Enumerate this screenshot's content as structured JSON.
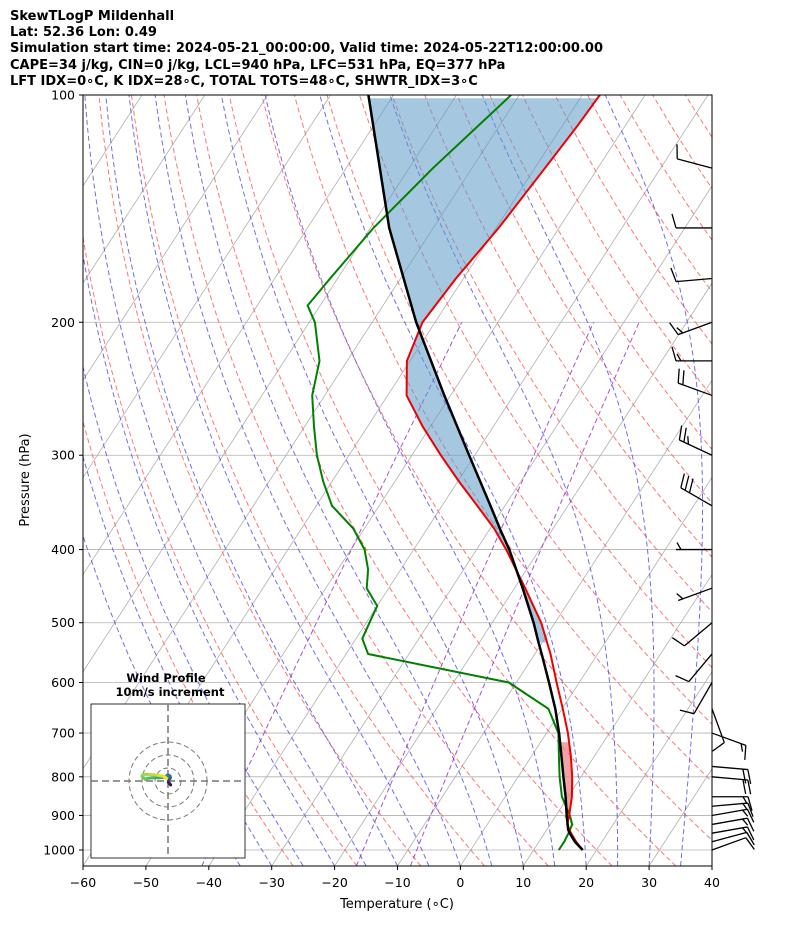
{
  "header": {
    "line1": "SkewTLogP Mildenhall",
    "line2": "Lat: 52.36   Lon: 0.49",
    "line3": "Simulation start time: 2024-05-21_00:00:00, Valid time: 2024-05-22T12:00:00.00",
    "line4": "CAPE=34 j/kg, CIN=0 j/kg, LCL=940 hPa, LFC=531 hPa, EQ=377 hPa",
    "line5": "LFT IDX=0∘C, K IDX=28∘C, TOTAL TOTS=48∘C, SHWTR_IDX=3∘C"
  },
  "chart_data": {
    "type": "skewt-logp",
    "xlabel": "Temperature (∘C)",
    "ylabel": "Pressure (hPa)",
    "xlim": [
      -60,
      40
    ],
    "ylim": [
      1050,
      100
    ],
    "y_scale": "log",
    "x_ticks": [
      "−60",
      "−50",
      "−40",
      "−30",
      "−20",
      "−10",
      "0",
      "10",
      "20",
      "30",
      "40"
    ],
    "y_ticks": [
      "100",
      "200",
      "300",
      "400",
      "500",
      "600",
      "700",
      "800",
      "900",
      "1000"
    ],
    "grid": true,
    "colors": {
      "temperature": "#ee0000",
      "dewpoint": "#008000",
      "parcel": "#000000",
      "cape_fill": "#5b9bc6",
      "cin_fill": "#e88585",
      "dry_adiabat": "#ff6666",
      "moist_adiabat": "#5555ee",
      "mixing_ratio": "#9933cc"
    },
    "temperature": {
      "p": [
        1000,
        975,
        950,
        925,
        900,
        850,
        800,
        750,
        700,
        650,
        600,
        550,
        500,
        450,
        400,
        375,
        350,
        325,
        300,
        275,
        250,
        225,
        200,
        175,
        150,
        125,
        110,
        100
      ],
      "t": [
        17.8,
        15.9,
        14.2,
        12.7,
        12.1,
        10.6,
        8.6,
        6.2,
        3.4,
        0.1,
        -3.6,
        -7.5,
        -12.2,
        -18.3,
        -25.3,
        -29.4,
        -34.4,
        -39.8,
        -45.4,
        -51.2,
        -57.0,
        -60.5,
        -62.0,
        -61.2,
        -59.6,
        -58.4,
        -57.6,
        -57.2
      ]
    },
    "dewpoint": {
      "p": [
        1000,
        975,
        950,
        925,
        900,
        850,
        800,
        750,
        700,
        650,
        600,
        550,
        525,
        500,
        475,
        450,
        425,
        400,
        375,
        350,
        325,
        300,
        275,
        250,
        225,
        200,
        190,
        175,
        150,
        125,
        100
      ],
      "td": [
        14.0,
        14.0,
        13.8,
        13.5,
        12.2,
        9.0,
        6.6,
        4.3,
        1.9,
        -2.2,
        -11.2,
        -36.5,
        -39.0,
        -39.5,
        -40.0,
        -43.5,
        -45.2,
        -47.8,
        -51.8,
        -57.5,
        -61.4,
        -65.1,
        -68.5,
        -72.0,
        -74.4,
        -79.1,
        -82.0,
        -81.2,
        -79.5,
        -76.2,
        -71.3
      ]
    },
    "parcel": {
      "p": [
        1000,
        975,
        950,
        940,
        900,
        850,
        800,
        750,
        700,
        650,
        600,
        550,
        531,
        500,
        450,
        400,
        377,
        350,
        300,
        250,
        200,
        150,
        100
      ],
      "t": [
        17.8,
        15.7,
        14.0,
        13.4,
        11.7,
        9.6,
        7.2,
        4.7,
        2.0,
        -1.1,
        -4.8,
        -8.9,
        -10.6,
        -13.4,
        -18.7,
        -24.8,
        -28.2,
        -32.3,
        -40.9,
        -51.0,
        -63.0,
        -77.0,
        -94.0
      ]
    },
    "cape_layer_hpa": [
      531,
      377
    ],
    "cin_layer_hpa": [
      940,
      720
    ],
    "wind_barbs": {
      "p": [
        1000,
        975,
        950,
        925,
        900,
        875,
        850,
        800,
        775,
        700,
        650,
        600,
        550,
        500,
        450,
        400,
        350,
        300,
        250,
        225,
        200,
        175,
        150,
        125
      ],
      "spd_kt": [
        10,
        12,
        15,
        15,
        15,
        15,
        15,
        20,
        20,
        15,
        10,
        10,
        10,
        10,
        5,
        5,
        30,
        25,
        20,
        15,
        15,
        10,
        10,
        10
      ],
      "dir_deg": [
        70,
        75,
        80,
        80,
        80,
        85,
        90,
        95,
        95,
        110,
        160,
        210,
        220,
        230,
        250,
        270,
        300,
        295,
        290,
        270,
        250,
        265,
        270,
        285
      ]
    }
  },
  "hodograph": {
    "title_line1": "Wind Profile",
    "title_line2": "10m/s increment",
    "rings_ms": [
      10,
      20,
      30
    ],
    "u": [
      2.0,
      1.2,
      0.3,
      0.5,
      1.0,
      1.6,
      1.8,
      1.5,
      0.6,
      -0.5,
      -1.0,
      -0.8,
      -2.5,
      -7.0,
      -12.0,
      -16.0,
      -17.5,
      -20.0,
      -19.0,
      -14.0,
      -8.0,
      -3.0,
      -1.0
    ],
    "v": [
      -3.0,
      -2.0,
      -1.0,
      0.5,
      1.5,
      2.0,
      2.8,
      3.8,
      4.4,
      4.5,
      4.0,
      3.2,
      3.0,
      2.5,
      2.5,
      2.0,
      1.2,
      3.8,
      5.2,
      5.0,
      4.5,
      3.5,
      1.8
    ]
  }
}
